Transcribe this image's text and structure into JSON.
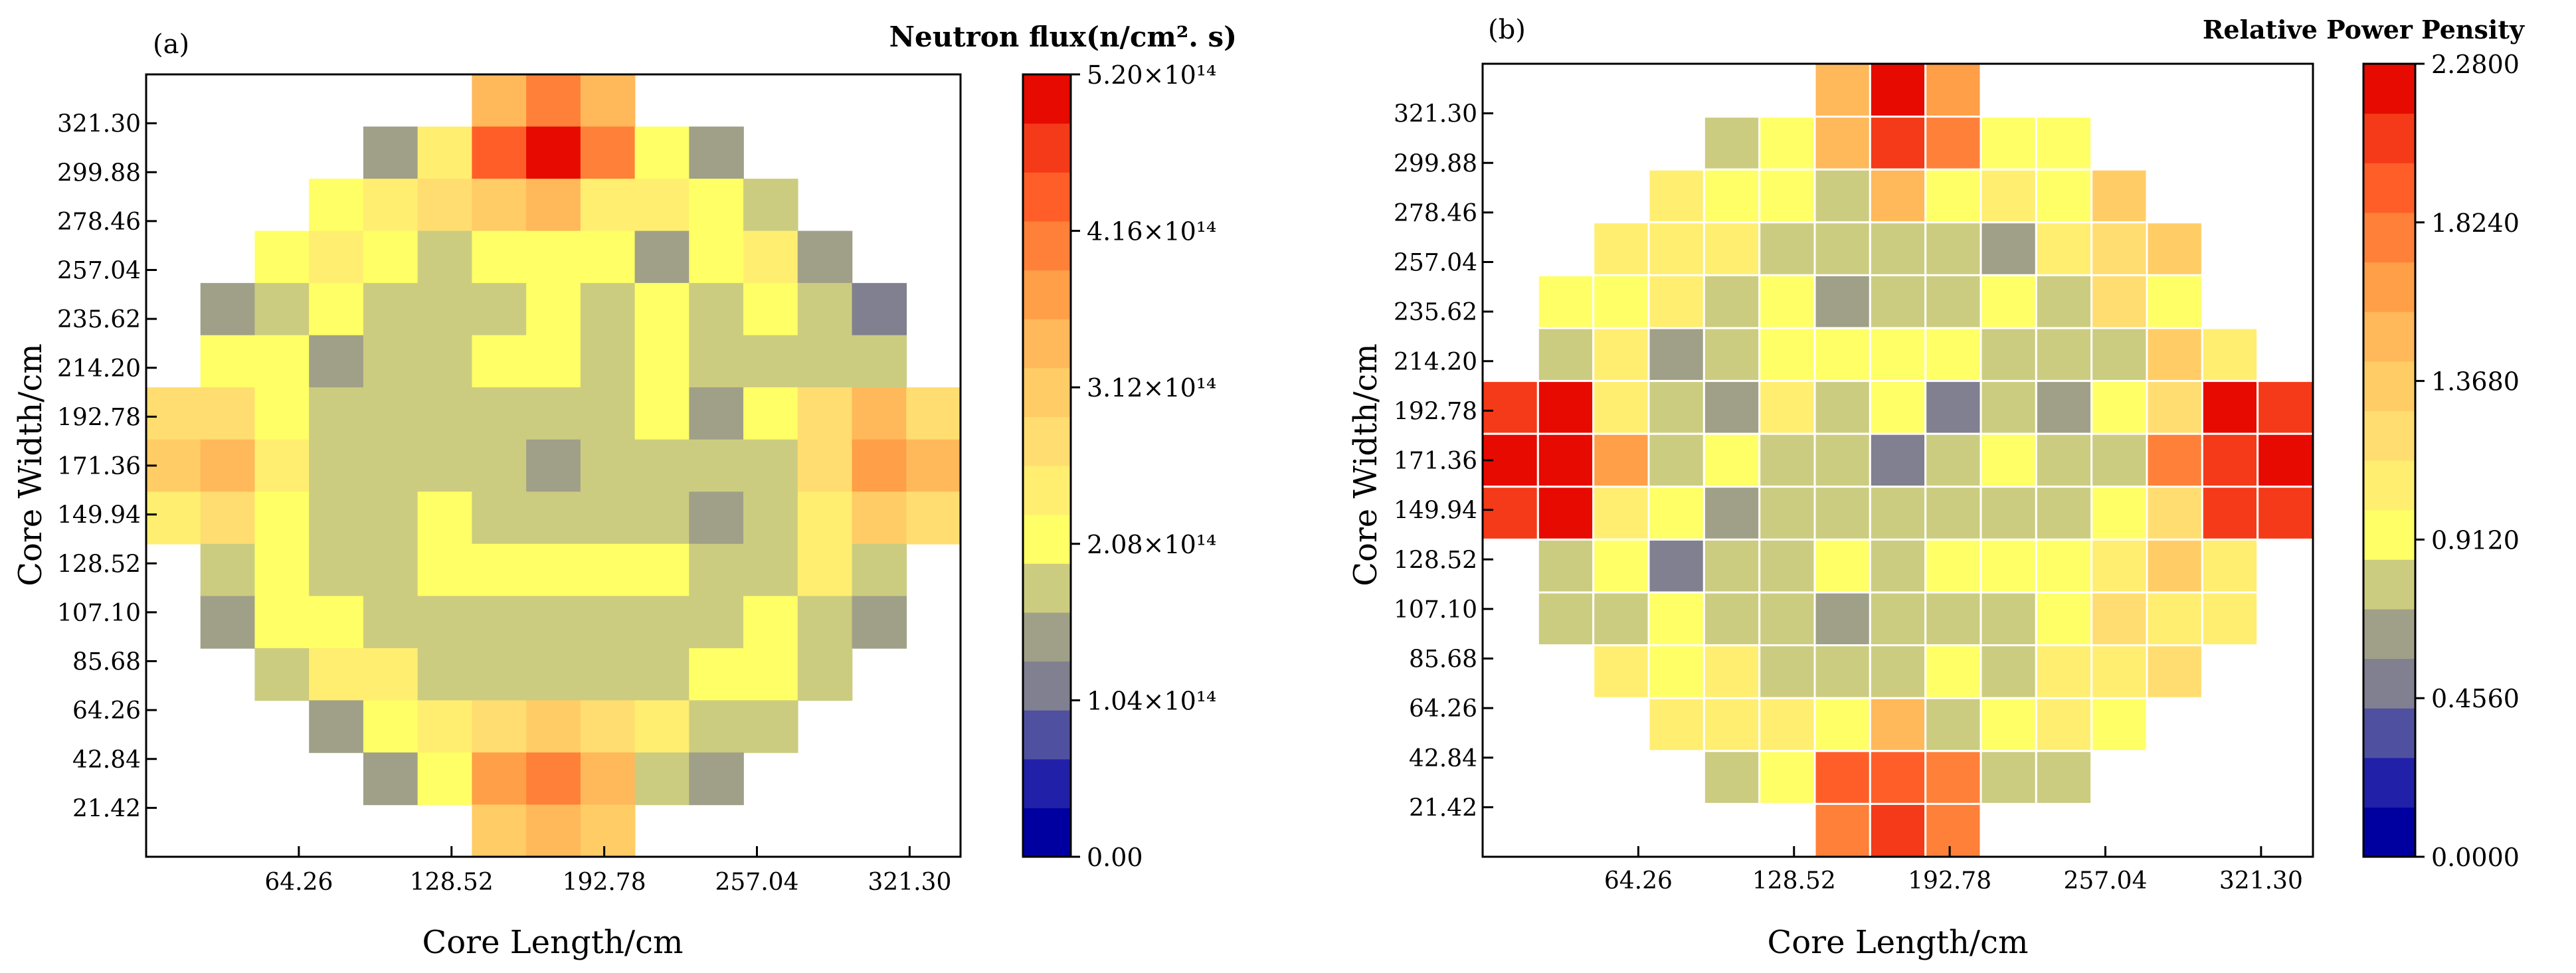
{
  "figure": {
    "panels": [
      "a",
      "b"
    ]
  },
  "chart_data": [
    {
      "type": "heatmap",
      "panel_label": "(a)",
      "title": "Neutron flux(n/cm². s)",
      "colorbar_title_html": "Neutron flux(n/cm<tspan font-size='0.7em' dy='-10'>2</tspan><tspan dy='10'>. s)</tspan>",
      "xlabel": "Core Length/cm",
      "ylabel": "Core Width/cm",
      "xlim": [
        0,
        342.72
      ],
      "ylim": [
        0,
        342.72
      ],
      "cell_size": 21.42,
      "xticks": [
        64.26,
        128.52,
        192.78,
        257.04,
        321.3
      ],
      "xtick_labels": [
        "64.26",
        "128.52",
        "192.78",
        "257.04",
        "321.30"
      ],
      "yticks": [
        21.42,
        42.84,
        64.26,
        85.68,
        107.1,
        128.52,
        149.94,
        171.36,
        192.78,
        214.2,
        235.62,
        257.04,
        278.46,
        299.88,
        321.3
      ],
      "ytick_labels": [
        "21.42",
        "42.84",
        "64.26",
        "85.68",
        "107.10",
        "128.52",
        "149.94",
        "171.36",
        "192.78",
        "214.20",
        "235.62",
        "257.04",
        "278.46",
        "299.88",
        "321.30"
      ],
      "colorbar": {
        "min": 0,
        "max": 5.2,
        "tick_values": [
          0,
          1.04,
          2.08,
          3.12,
          4.16,
          5.2
        ],
        "tick_labels": [
          "0.00",
          "1.04×10¹⁴",
          "2.08×10¹⁴",
          "3.12×10¹⁴",
          "4.16×10¹⁴",
          "5.20×10¹⁴"
        ],
        "units_note": "×10^14 n/cm².s"
      },
      "cell_borders": false,
      "rows_top_to_bottom": [
        [
          null,
          null,
          null,
          null,
          null,
          null,
          3.35,
          3.9,
          3.4,
          null,
          null,
          null,
          null,
          null,
          null
        ],
        [
          null,
          null,
          null,
          null,
          1.55,
          2.5,
          4.3,
          5.0,
          4.2,
          2.2,
          1.6,
          null,
          null,
          null,
          null
        ],
        [
          null,
          null,
          null,
          2.05,
          2.3,
          2.6,
          3.0,
          3.45,
          2.45,
          2.55,
          2.25,
          1.9,
          null,
          null,
          null
        ],
        [
          null,
          null,
          2.0,
          2.3,
          2.15,
          1.65,
          2.2,
          2.0,
          2.0,
          1.6,
          2.2,
          2.3,
          1.6,
          null,
          null
        ],
        [
          null,
          1.4,
          1.9,
          2.1,
          1.75,
          1.85,
          1.65,
          2.0,
          1.75,
          2.0,
          1.8,
          2.0,
          1.75,
          1.15,
          null
        ],
        [
          null,
          1.95,
          2.0,
          1.6,
          1.85,
          1.85,
          1.95,
          2.1,
          1.9,
          2.25,
          1.8,
          1.7,
          1.85,
          1.8,
          null
        ],
        [
          2.6,
          2.85,
          2.0,
          1.75,
          1.7,
          1.75,
          1.7,
          1.75,
          1.85,
          2.0,
          1.5,
          2.05,
          2.9,
          3.3,
          2.7
        ],
        [
          3.0,
          3.4,
          2.35,
          1.75,
          1.75,
          1.75,
          1.7,
          1.45,
          1.7,
          1.8,
          1.7,
          1.7,
          2.9,
          3.7,
          3.3
        ],
        [
          2.55,
          2.8,
          1.95,
          1.7,
          1.7,
          1.95,
          1.75,
          1.75,
          1.75,
          1.7,
          1.5,
          1.9,
          2.3,
          3.05,
          2.65
        ],
        [
          null,
          1.75,
          2.0,
          1.7,
          1.85,
          2.15,
          2.0,
          2.0,
          2.0,
          2.0,
          1.7,
          1.7,
          2.3,
          1.85,
          null
        ],
        [
          null,
          1.35,
          1.95,
          2.1,
          1.75,
          1.85,
          1.65,
          1.9,
          1.75,
          1.9,
          1.65,
          2.05,
          1.85,
          1.3,
          null
        ],
        [
          null,
          null,
          1.75,
          2.35,
          2.3,
          1.8,
          1.9,
          1.9,
          1.9,
          1.7,
          2.25,
          2.2,
          1.7,
          null,
          null
        ],
        [
          null,
          null,
          null,
          1.6,
          2.0,
          2.5,
          2.65,
          3.1,
          2.6,
          2.4,
          1.8,
          1.7,
          null,
          null,
          null
        ],
        [
          null,
          null,
          null,
          null,
          1.45,
          2.2,
          3.7,
          4.2,
          3.55,
          1.9,
          1.45,
          null,
          null,
          null,
          null
        ],
        [
          null,
          null,
          null,
          null,
          null,
          null,
          3.1,
          3.55,
          2.95,
          null,
          null,
          null,
          null,
          null,
          null
        ]
      ]
    },
    {
      "type": "heatmap",
      "panel_label": "(b)",
      "title": "Relative Power Pensity",
      "xlabel": "Core Length/cm",
      "ylabel": "Core Width/cm",
      "xlim": [
        0,
        342.72
      ],
      "ylim": [
        0,
        342.72
      ],
      "cell_size": 21.42,
      "xticks": [
        64.26,
        128.52,
        192.78,
        257.04,
        321.3
      ],
      "xtick_labels": [
        "64.26",
        "128.52",
        "192.78",
        "257.04",
        "321.30"
      ],
      "yticks": [
        21.42,
        42.84,
        64.26,
        85.68,
        107.1,
        128.52,
        149.94,
        171.36,
        192.78,
        214.2,
        235.62,
        257.04,
        278.46,
        299.88,
        321.3
      ],
      "ytick_labels": [
        "21.42",
        "42.84",
        "64.26",
        "85.68",
        "107.10",
        "128.52",
        "149.94",
        "171.36",
        "192.78",
        "214.20",
        "235.62",
        "257.04",
        "278.46",
        "299.88",
        "321.30"
      ],
      "colorbar": {
        "min": 0,
        "max": 2.28,
        "tick_values": [
          0,
          0.456,
          0.912,
          1.368,
          1.824,
          2.28
        ],
        "tick_labels": [
          "0.0000",
          "0.4560",
          "0.9120",
          "1.3680",
          "1.8240",
          "2.2800"
        ]
      },
      "cell_borders": true,
      "rows_top_to_bottom": [
        [
          null,
          null,
          null,
          null,
          null,
          null,
          1.55,
          2.15,
          1.6,
          null,
          null,
          null,
          null,
          null,
          null
        ],
        [
          null,
          null,
          null,
          null,
          0.8,
          0.95,
          1.55,
          2.0,
          1.85,
          0.95,
          0.9,
          null,
          null,
          null,
          null
        ],
        [
          null,
          null,
          null,
          1.1,
          0.9,
          0.95,
          0.85,
          1.55,
          0.9,
          1.1,
          0.95,
          1.3,
          null,
          null,
          null
        ],
        [
          null,
          null,
          1.1,
          1.05,
          1.0,
          0.75,
          0.8,
          0.75,
          0.8,
          0.7,
          1.05,
          1.15,
          1.3,
          null,
          null
        ],
        [
          null,
          0.9,
          0.95,
          1.05,
          0.75,
          0.9,
          0.6,
          0.85,
          0.75,
          0.9,
          0.8,
          1.15,
          0.9,
          null,
          null
        ],
        [
          null,
          0.85,
          1.0,
          0.7,
          0.85,
          0.9,
          0.95,
          0.9,
          0.9,
          0.85,
          0.8,
          0.75,
          1.3,
          1.05,
          null
        ],
        [
          2.1,
          2.2,
          1.05,
          0.8,
          0.7,
          1.0,
          0.8,
          0.9,
          0.55,
          0.85,
          0.7,
          0.9,
          1.2,
          2.15,
          2.0
        ],
        [
          2.2,
          2.2,
          1.6,
          0.75,
          0.9,
          0.85,
          0.8,
          0.5,
          0.85,
          0.9,
          0.85,
          0.8,
          1.75,
          2.1,
          2.25
        ],
        [
          2.05,
          2.15,
          1.05,
          0.95,
          0.6,
          0.85,
          0.75,
          0.85,
          0.75,
          0.85,
          0.8,
          0.9,
          1.15,
          2.1,
          2.0
        ],
        [
          null,
          0.75,
          0.9,
          0.55,
          0.8,
          0.85,
          0.9,
          0.85,
          0.9,
          0.95,
          0.9,
          1.05,
          1.3,
          1.1,
          null
        ],
        [
          null,
          0.8,
          0.85,
          0.9,
          0.8,
          0.75,
          0.6,
          0.75,
          0.85,
          0.8,
          0.9,
          1.2,
          1.05,
          1.05,
          null
        ],
        [
          null,
          null,
          1.05,
          0.95,
          1.05,
          0.75,
          0.85,
          0.8,
          0.9,
          0.75,
          1.05,
          1.1,
          1.2,
          null,
          null
        ],
        [
          null,
          null,
          null,
          1.1,
          1.0,
          1.05,
          0.9,
          1.45,
          0.85,
          0.95,
          1.05,
          0.95,
          null,
          null,
          null
        ],
        [
          null,
          null,
          null,
          null,
          0.85,
          0.9,
          1.9,
          1.95,
          1.85,
          0.85,
          0.85,
          null,
          null,
          null,
          null
        ],
        [
          null,
          null,
          null,
          null,
          null,
          null,
          1.75,
          2.0,
          1.75,
          null,
          null,
          null,
          null,
          null,
          null
        ]
      ]
    }
  ],
  "colormap_colors": [
    "#0000a0",
    "#2020a8",
    "#5050a0",
    "#808090",
    "#a0a088",
    "#cccc80",
    "#ffff66",
    "#ffee70",
    "#ffdd70",
    "#ffcc66",
    "#ffb85a",
    "#ff9f48",
    "#ff8038",
    "#ff5e28",
    "#f43a18",
    "#e60a00"
  ]
}
